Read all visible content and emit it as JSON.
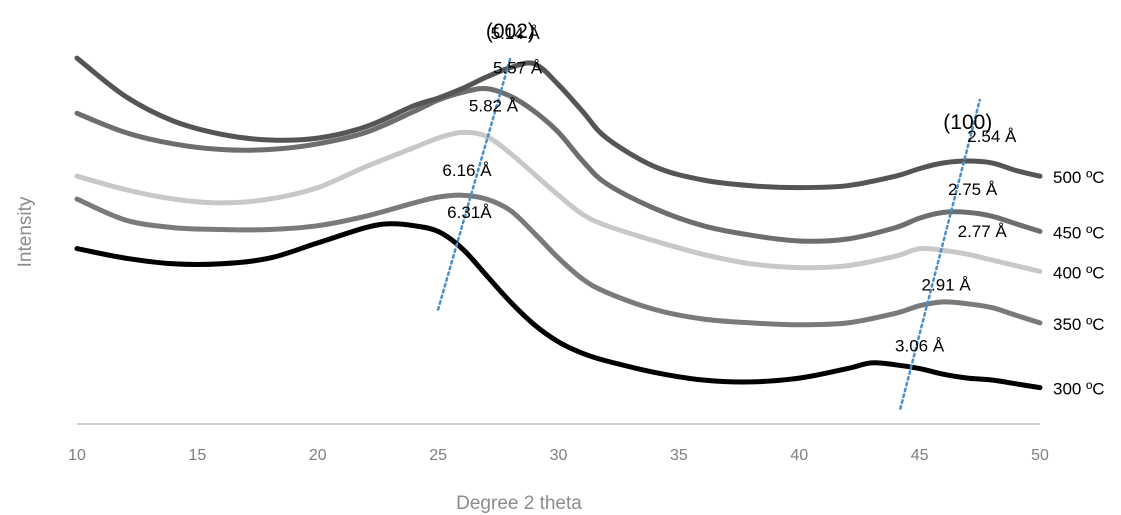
{
  "chart_data": {
    "type": "line",
    "xlabel": "Degree 2 theta",
    "ylabel": "Intensity",
    "xlim": [
      10,
      50
    ],
    "x_ticks": [
      "10",
      "15",
      "20",
      "25",
      "30",
      "35",
      "40",
      "45",
      "50"
    ],
    "y_ticks_shown": false,
    "grid": false,
    "legend": "none (series labelled at right end of curves)",
    "peak_labels": [
      {
        "text": "(002)",
        "x": 28
      },
      {
        "text": "(100)",
        "x": 47
      }
    ],
    "series": [
      {
        "name": "500 ºC",
        "label_main": "500 º",
        "label_sub": "C",
        "color": "#555555",
        "x": [
          10,
          12,
          14,
          16,
          18,
          20,
          22,
          24,
          25,
          26,
          27,
          28,
          29,
          30,
          31,
          32,
          34,
          36,
          38,
          40,
          42,
          44,
          45,
          46,
          47,
          48,
          49,
          50
        ],
        "y": [
          9.0,
          8.0,
          7.35,
          7.0,
          6.85,
          6.9,
          7.2,
          7.75,
          7.95,
          8.2,
          8.5,
          8.75,
          8.85,
          8.3,
          7.6,
          6.9,
          6.15,
          5.8,
          5.65,
          5.6,
          5.65,
          5.9,
          6.1,
          6.25,
          6.3,
          6.25,
          6.05,
          5.9
        ],
        "annotations": [
          {
            "text": "5.14 Å",
            "x": 28.2,
            "y": 9.5
          },
          {
            "text": "2.54 Å",
            "x": 48,
            "y": 6.8
          }
        ]
      },
      {
        "name": "450 ºC",
        "label_main": "450 º",
        "label_sub": "C",
        "color": "#6e6e6e",
        "x": [
          10,
          12,
          14,
          16,
          18,
          20,
          22,
          24,
          25,
          26,
          27,
          28,
          29,
          30,
          31,
          32,
          34,
          36,
          38,
          40,
          42,
          44,
          45,
          46,
          47,
          48,
          49,
          50
        ],
        "y": [
          7.55,
          7.05,
          6.75,
          6.6,
          6.6,
          6.75,
          7.05,
          7.6,
          7.9,
          8.1,
          8.2,
          8.0,
          7.6,
          7.05,
          6.3,
          5.7,
          5.05,
          4.6,
          4.35,
          4.2,
          4.25,
          4.55,
          4.8,
          4.95,
          4.95,
          4.85,
          4.65,
          4.45
        ],
        "annotations": [
          {
            "text": "5.57 Å",
            "x": 28.3,
            "y": 8.6
          },
          {
            "text": "2.75 Å",
            "x": 47.2,
            "y": 5.4
          }
        ]
      },
      {
        "name": "400 ºC",
        "label_main": "400 º",
        "label_sub": "C",
        "color": "#c8c8c8",
        "x": [
          10,
          12,
          14,
          16,
          18,
          20,
          22,
          24,
          25,
          26,
          27,
          28,
          29,
          30,
          31,
          32,
          34,
          36,
          38,
          40,
          42,
          44,
          45,
          46,
          47,
          48,
          49,
          50
        ],
        "y": [
          5.9,
          5.55,
          5.3,
          5.2,
          5.3,
          5.6,
          6.15,
          6.65,
          6.9,
          7.05,
          6.95,
          6.5,
          5.95,
          5.4,
          4.9,
          4.6,
          4.2,
          3.85,
          3.6,
          3.5,
          3.55,
          3.8,
          4.0,
          3.95,
          3.85,
          3.7,
          3.55,
          3.4
        ],
        "annotations": [
          {
            "text": "5.82 Å",
            "x": 27.3,
            "y": 7.6
          },
          {
            "text": "2.77 Å",
            "x": 47.6,
            "y": 4.3
          }
        ]
      },
      {
        "name": "350 ºC",
        "label_main": "350 º",
        "label_sub": "C",
        "color": "#7a7a7a",
        "x": [
          10,
          12,
          14,
          16,
          18,
          20,
          22,
          24,
          25,
          26,
          27,
          28,
          29,
          30,
          31,
          32,
          34,
          36,
          38,
          40,
          42,
          44,
          45,
          46,
          47,
          48,
          49,
          50
        ],
        "y": [
          5.3,
          4.75,
          4.55,
          4.5,
          4.5,
          4.6,
          4.85,
          5.2,
          5.35,
          5.4,
          5.3,
          5.0,
          4.4,
          3.75,
          3.2,
          2.85,
          2.4,
          2.15,
          2.05,
          2.0,
          2.05,
          2.3,
          2.5,
          2.6,
          2.55,
          2.45,
          2.25,
          2.05
        ],
        "annotations": [
          {
            "text": "6.16 Å",
            "x": 26.2,
            "y": 5.9
          },
          {
            "text": "2.91 Å",
            "x": 46.1,
            "y": 2.9
          }
        ]
      },
      {
        "name": "300 ºC",
        "label_main": "300 º",
        "label_sub": "C",
        "color": "#000000",
        "x": [
          10,
          12,
          14,
          16,
          18,
          20,
          22,
          23,
          24,
          25,
          26,
          27,
          28,
          29,
          30,
          31,
          32,
          34,
          36,
          38,
          40,
          42,
          43,
          44,
          45,
          46,
          47,
          48,
          49,
          50
        ],
        "y": [
          4.0,
          3.75,
          3.6,
          3.6,
          3.75,
          4.15,
          4.55,
          4.65,
          4.6,
          4.45,
          4.0,
          3.3,
          2.6,
          2.0,
          1.55,
          1.25,
          1.05,
          0.75,
          0.55,
          0.5,
          0.6,
          0.85,
          1.0,
          0.95,
          0.85,
          0.7,
          0.6,
          0.55,
          0.45,
          0.35
        ],
        "annotations": [
          {
            "text": "6.31Å",
            "x": 26.3,
            "y": 4.8
          },
          {
            "text": "3.06 Å",
            "x": 45.0,
            "y": 1.3
          }
        ]
      }
    ],
    "guide_lines": [
      {
        "style": "dotted",
        "color": "#4a90c8",
        "from": [
          25,
          2.4
        ],
        "to": [
          28,
          9.0
        ]
      },
      {
        "style": "dotted",
        "color": "#4a90c8",
        "from": [
          44.2,
          -0.2
        ],
        "to": [
          47.5,
          7.9
        ]
      }
    ]
  }
}
